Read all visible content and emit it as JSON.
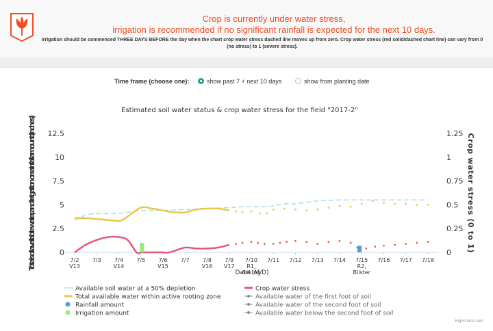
{
  "alert": {
    "title_line1": "Crop is currently under water stress,",
    "title_line2": "irrigation is recommended if no significant rainfall is expected for the next 10 days.",
    "note": "Irrigation should be commenced THREE DAYS BEFORE the day when the chart crop water stress dashed line moves up from zero. Crop water stress (red solid/dashed chart line) can vary from 0 (no stress) to 1 (severe stress).",
    "logo_icon": "crop-logo-icon",
    "accent_color": "#f04e23"
  },
  "timeframe": {
    "label": "Time frame (choose one):",
    "options": [
      {
        "label": "show past 7 + next 10 days",
        "selected": true
      },
      {
        "label": "show from planting date",
        "selected": false
      }
    ]
  },
  "credits": "Highcharts.com",
  "chart_data": {
    "type": "line",
    "title": "Estimated soil water status & crop water stress for the field \"2017-2\"",
    "xlabel": "Date (M/D)",
    "ylabel_left": "Total soil available water, and irrigation or rainfall amount (inches)",
    "ylabel_right": "Crop water stress (0 to 1)",
    "ylim_left": [
      0,
      12.5
    ],
    "ylim_right": [
      0,
      1.25
    ],
    "yticks_left": [
      "0",
      "2.5",
      "5",
      "7.5",
      "10",
      "12.5"
    ],
    "yticks_right": [
      "0",
      "0.25",
      "0.5",
      "0.75",
      "1",
      "1.25"
    ],
    "grid": false,
    "legend_position": "bottom",
    "categories": [
      [
        "7/2",
        "V13"
      ],
      [
        "7/3",
        ""
      ],
      [
        "7/4",
        "V14"
      ],
      [
        "7/5",
        ""
      ],
      [
        "7/6",
        "V15"
      ],
      [
        "7/7",
        ""
      ],
      [
        "7/8",
        "V16"
      ],
      [
        "7/9",
        "V17"
      ],
      [
        "7/10",
        "R1,",
        "Silking"
      ],
      [
        "7/11",
        ""
      ],
      [
        "7/12",
        ""
      ],
      [
        "7/13",
        ""
      ],
      [
        "7/14",
        ""
      ],
      [
        "7/15",
        "R2,",
        "Blister"
      ],
      [
        "7/16",
        ""
      ],
      [
        "7/17",
        ""
      ],
      [
        "7/18",
        ""
      ]
    ],
    "x": [
      0,
      1,
      2,
      3,
      4,
      5,
      6,
      7,
      8,
      9,
      10,
      11,
      12,
      13,
      14,
      15,
      16
    ],
    "series": [
      {
        "name": "Available soil water at a 50% depletion",
        "axis": "left",
        "color": "#a8dde9",
        "style": "dashed-line",
        "x": [
          0,
          0.7,
          2,
          3,
          4,
          5,
          6,
          7,
          7.7,
          8.7,
          9.5,
          10,
          11,
          12,
          13,
          14,
          15,
          16
        ],
        "values": [
          3.4,
          4.0,
          4.1,
          4.4,
          4.4,
          4.5,
          4.6,
          4.7,
          4.8,
          4.8,
          5.1,
          5.1,
          5.4,
          5.5,
          5.5,
          5.5,
          5.5,
          5.5
        ]
      },
      {
        "name": "Total available water within active rooting zone",
        "axis": "left",
        "color": "#e8c84a",
        "style": "solid-then-dotted",
        "split_x": 7,
        "x": [
          0,
          0.5,
          1,
          1.5,
          2,
          2.3,
          3,
          3.5,
          4,
          4.5,
          5,
          5.5,
          6,
          6.5,
          7,
          7.3,
          7.6,
          8,
          8.4,
          8.7,
          9,
          9.5,
          10,
          10.5,
          11,
          11.5,
          12,
          12.5,
          13,
          13.5,
          14,
          14.5,
          15,
          15.5,
          16
        ],
        "values": [
          3.6,
          3.6,
          3.5,
          3.4,
          3.3,
          3.6,
          4.7,
          4.6,
          4.4,
          4.2,
          4.2,
          4.5,
          4.6,
          4.6,
          4.4,
          4.3,
          4.2,
          4.3,
          4.1,
          4.1,
          4.5,
          4.6,
          4.5,
          4.4,
          4.5,
          4.7,
          4.9,
          4.8,
          5.1,
          5.4,
          5.2,
          5.1,
          5.1,
          5.0,
          5.0
        ]
      },
      {
        "name": "Crop water stress",
        "axis": "right",
        "color": "#e8557a",
        "style": "solid-then-dotted",
        "split_x": 7,
        "x": [
          0,
          0.5,
          1,
          1.5,
          2,
          2.4,
          2.8,
          3,
          3.3,
          3.5,
          4,
          4.3,
          5,
          5.5,
          6,
          6.5,
          7,
          7.3,
          7.6,
          8,
          8.3,
          8.6,
          9,
          9.3,
          9.6,
          10,
          10.5,
          11,
          11.5,
          12,
          12.5,
          12.8,
          13.2,
          13.6,
          14,
          14.5,
          15,
          15.5,
          16
        ],
        "values": [
          0.0,
          0.08,
          0.13,
          0.16,
          0.16,
          0.13,
          0.0,
          0.0,
          0.0,
          0.0,
          0.0,
          0.0,
          0.05,
          0.04,
          0.04,
          0.05,
          0.08,
          0.09,
          0.1,
          0.11,
          0.1,
          0.09,
          0.09,
          0.1,
          0.11,
          0.12,
          0.11,
          0.09,
          0.11,
          0.12,
          0.1,
          0.05,
          0.04,
          0.06,
          0.07,
          0.08,
          0.09,
          0.1,
          0.11
        ]
      },
      {
        "name": "Rainfall amount",
        "axis": "left",
        "color": "#5b9bd5",
        "style": "column",
        "x": [
          12.9
        ],
        "values": [
          0.7
        ]
      },
      {
        "name": "Irrigation amount",
        "axis": "left",
        "color": "#90ee7e",
        "style": "column",
        "x": [
          3.05
        ],
        "values": [
          1.0
        ]
      },
      {
        "name": "Available water of the first foot of soil",
        "axis": "left",
        "color": "#888888",
        "style": "legend-only"
      },
      {
        "name": "Available water of the second foot of soil",
        "axis": "left",
        "color": "#888888",
        "style": "legend-only"
      },
      {
        "name": "Available water below the second foot of soil",
        "axis": "left",
        "color": "#888888",
        "style": "legend-only"
      }
    ]
  }
}
